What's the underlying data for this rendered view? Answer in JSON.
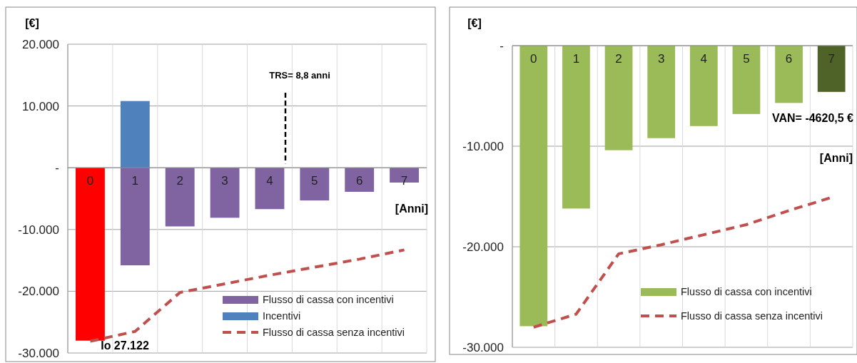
{
  "chart_data": [
    {
      "type": "bar",
      "categories": [
        "0",
        "1",
        "2",
        "3",
        "4",
        "5",
        "6",
        "7"
      ],
      "xlabel": "[Anni]",
      "ylabel": "[€]",
      "ylim": [
        -30000,
        20000
      ],
      "yticks": [
        {
          "value": -30000,
          "label": "-30.000"
        },
        {
          "value": -20000,
          "label": "-20.000"
        },
        {
          "value": -10000,
          "label": "-10.000"
        },
        {
          "value": 0,
          "label": "-"
        },
        {
          "value": 10000,
          "label": "10.000"
        },
        {
          "value": 20000,
          "label": "20.000"
        }
      ],
      "grid": true,
      "legend": "bottom right",
      "annotations": [
        "TRS= 8,8 anni",
        "Io  27.122"
      ],
      "series": [
        {
          "name": "Flusso di cassa con incentivi",
          "color": "#8064a2",
          "colors": [
            "#ff0000",
            "#8064a2",
            "#8064a2",
            "#8064a2",
            "#8064a2",
            "#8064a2",
            "#8064a2",
            "#8064a2"
          ],
          "values": [
            -28000,
            -15800,
            -9500,
            -8100,
            -6700,
            -5300,
            -3900,
            -2400
          ]
        },
        {
          "name": "Incentivi",
          "color": "#4f81bd",
          "values": [
            null,
            10800,
            null,
            null,
            null,
            null,
            null,
            null
          ]
        },
        {
          "name": "Flusso di cassa senza incentivi",
          "type": "line",
          "color": "#c0504d",
          "line_style": "dashed",
          "marker": "none",
          "values": [
            -28100,
            -26500,
            -20200,
            -18800,
            -17400,
            -16100,
            -14800,
            -13300
          ]
        }
      ]
    },
    {
      "type": "bar",
      "categories": [
        "0",
        "1",
        "2",
        "3",
        "4",
        "5",
        "6",
        "7"
      ],
      "xlabel": "[Anni]",
      "ylabel": "[€]",
      "ylim": [
        -30000,
        0
      ],
      "yticks": [
        {
          "value": -30000,
          "label": "-30.000"
        },
        {
          "value": -20000,
          "label": "-20.000"
        },
        {
          "value": -10000,
          "label": "-10.000"
        },
        {
          "value": 0,
          "label": "-"
        }
      ],
      "grid": true,
      "legend": "bottom right",
      "annotations": [
        "VAN= -4620,5 €"
      ],
      "series": [
        {
          "name": "Flusso di cassa con incentivi",
          "color": "#9bbb59",
          "colors": [
            "#9bbb59",
            "#9bbb59",
            "#9bbb59",
            "#9bbb59",
            "#9bbb59",
            "#9bbb59",
            "#9bbb59",
            "#4f6228"
          ],
          "values": [
            -27900,
            -16200,
            -10400,
            -9200,
            -8000,
            -6800,
            -5700,
            -4600
          ]
        },
        {
          "name": "Flusso di cassa senza incentivi",
          "type": "line",
          "color": "#c0504d",
          "line_style": "dashed",
          "marker": "none",
          "values": [
            -28000,
            -26700,
            -20700,
            -19800,
            -18800,
            -17800,
            -16400,
            -15100
          ]
        }
      ]
    }
  ]
}
